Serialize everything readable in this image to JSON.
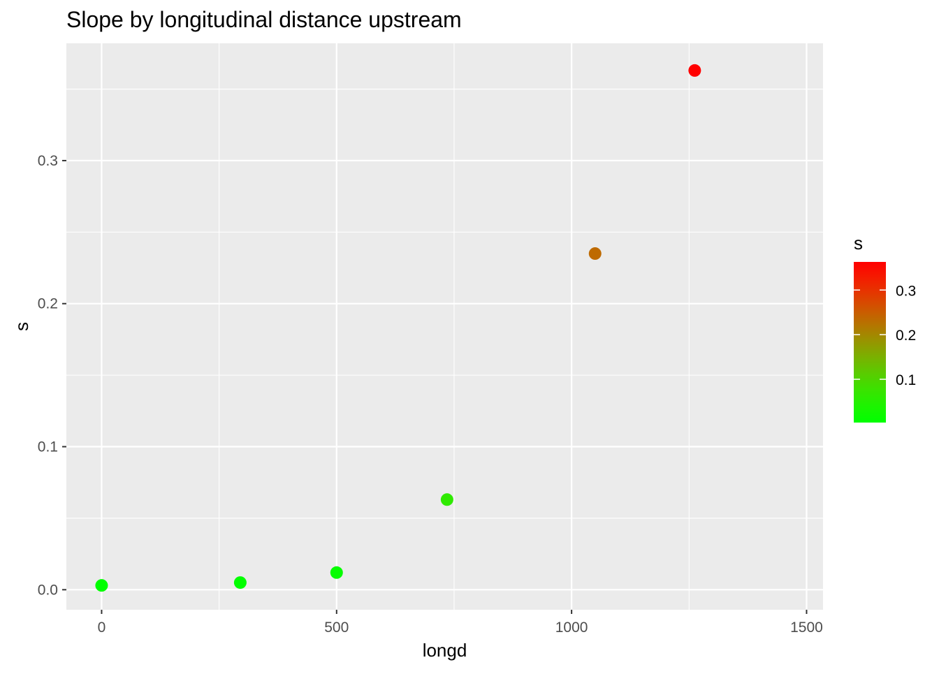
{
  "chart_data": {
    "type": "scatter",
    "title": "Slope by longitudinal distance upstream",
    "xlabel": "longd",
    "ylabel": "s",
    "xlim": [
      -75,
      1535
    ],
    "ylim": [
      -0.014,
      0.382
    ],
    "xticks": [
      0,
      500,
      1000,
      1500
    ],
    "xtick_labels": [
      "0",
      "500",
      "1000",
      "1500"
    ],
    "yticks": [
      0.0,
      0.1,
      0.2,
      0.3
    ],
    "ytick_labels": [
      "0.0",
      "0.1",
      "0.2",
      "0.3"
    ],
    "grid": true,
    "points": [
      {
        "x": 0,
        "y": 0.003
      },
      {
        "x": 295,
        "y": 0.005
      },
      {
        "x": 500,
        "y": 0.012
      },
      {
        "x": 735,
        "y": 0.063
      },
      {
        "x": 1050,
        "y": 0.235
      },
      {
        "x": 1262,
        "y": 0.363
      }
    ],
    "legend": {
      "title": "s",
      "position": "right",
      "range": [
        0.003,
        0.363
      ],
      "ticks": [
        0.1,
        0.2,
        0.3
      ],
      "tick_labels": [
        "0.1",
        "0.2",
        "0.3"
      ],
      "low_color": "#00FF00",
      "high_color": "#FF0000"
    },
    "colors": {
      "panel": "#EBEBEB",
      "grid": "#FFFFFF",
      "axis_text": "#4D4D4D"
    }
  }
}
